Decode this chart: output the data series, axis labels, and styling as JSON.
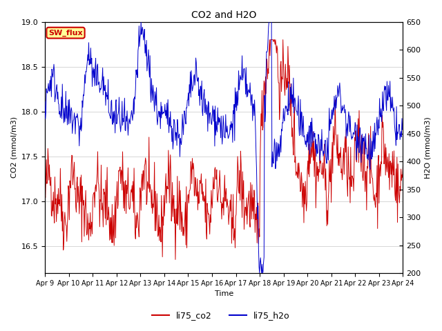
{
  "title": "CO2 and H2O",
  "xlabel": "Time",
  "ylabel_left": "CO2 (mmol/m3)",
  "ylabel_right": "H2O (mmol/m3)",
  "ylim_left": [
    16.2,
    19.0
  ],
  "ylim_right": [
    200,
    650
  ],
  "co2_color": "#cc0000",
  "h2o_color": "#0000cc",
  "annotation_text": "SW_flux",
  "annotation_bg": "#ffff99",
  "annotation_fg": "#cc0000",
  "legend_labels": [
    "li75_co2",
    "li75_h2o"
  ],
  "x_tick_labels": [
    "Apr 9",
    "Apr 10",
    "Apr 11",
    "Apr 12",
    "Apr 13",
    "Apr 14",
    "Apr 15",
    "Apr 16",
    "Apr 17",
    "Apr 18",
    "Apr 19",
    "Apr 20",
    "Apr 21",
    "Apr 22",
    "Apr 23",
    "Apr 24"
  ],
  "n_days": 15,
  "seed": 42
}
